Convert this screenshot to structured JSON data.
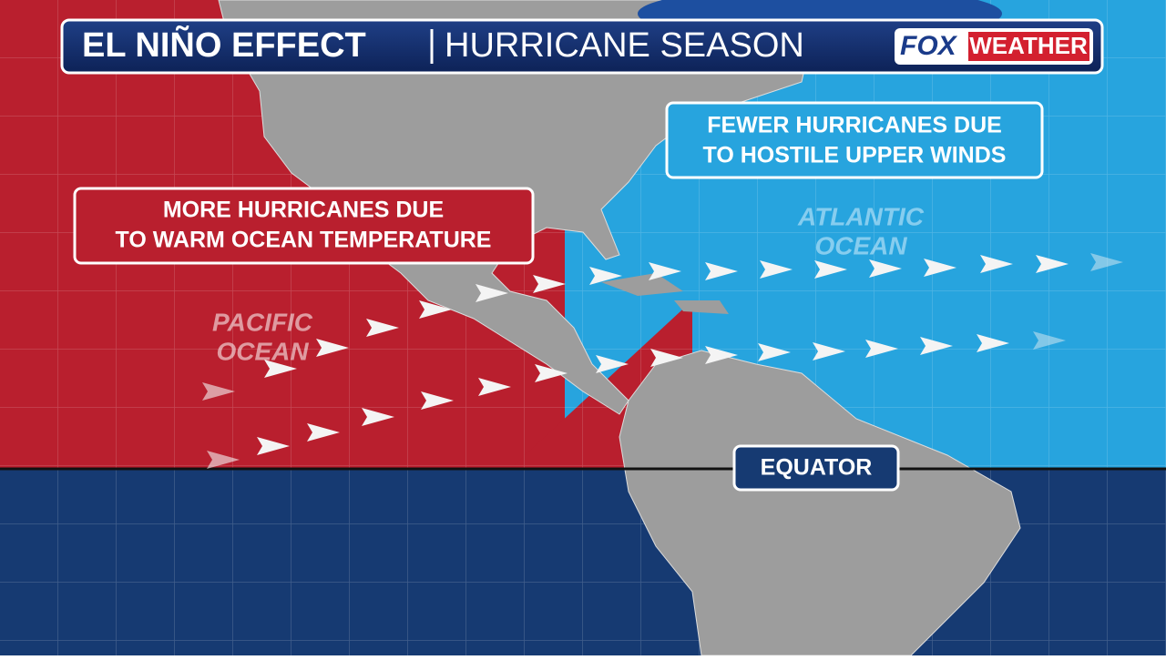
{
  "header": {
    "title": "EL NIÑO EFFECT",
    "subtitle": "HURRICANE SEASON",
    "logo": {
      "brand": "FOX",
      "name": "WEATHER"
    }
  },
  "callouts": [
    {
      "lines": [
        "MORE HURRICANES DUE",
        "TO WARM OCEAN TEMPERATURE"
      ]
    },
    {
      "lines": [
        "FEWER HURRICANES DUE",
        "TO HOSTILE UPPER WINDS"
      ]
    }
  ],
  "labels": {
    "equator": "EQUATOR",
    "pacific": [
      "PACIFIC",
      "OCEAN"
    ],
    "atlantic": [
      "ATLANTIC",
      "OCEAN"
    ]
  }
}
